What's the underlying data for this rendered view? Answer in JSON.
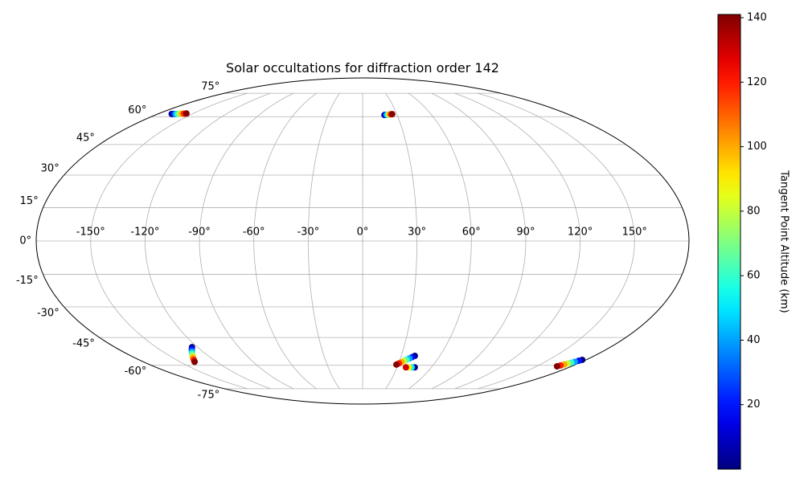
{
  "chart_data": {
    "type": "scatter",
    "projection": "mollweide",
    "title": "Solar occultations for diffraction order 142",
    "x": [
      -168,
      -166.3,
      -164.6,
      -162.9,
      -161.1,
      -159.4,
      -157.7,
      -156,
      19,
      20,
      21,
      22,
      23,
      24,
      25,
      26,
      -124,
      -126,
      -128,
      -130,
      -132,
      -134,
      -136,
      -138,
      40.6,
      38.9,
      37.2,
      35.5,
      33.7,
      32,
      30.3,
      28.6,
      45.5,
      42.9,
      40.4,
      37.8,
      177,
      175.7,
      174.3,
      173,
      171.7,
      170.3,
      169,
      167.7
    ],
    "y": [
      61.6,
      61.6,
      61.6,
      61.6,
      61.7,
      61.7,
      61.8,
      61.9,
      61,
      61.1,
      61.1,
      61.2,
      61.3,
      61.4,
      61.4,
      61.5,
      -50,
      -51.1,
      -52.3,
      -53.4,
      -54.6,
      -55.7,
      -56.9,
      -58,
      -54.7,
      -55.4,
      -56.1,
      -56.8,
      -57.5,
      -58.2,
      -58.9,
      -59.6,
      -61.2,
      -61.2,
      -61.2,
      -61.2,
      -56.9,
      -57.4,
      -58,
      -58.5,
      -59,
      -59.5,
      -60.1,
      -60.6
    ],
    "values": [
      1,
      20,
      40,
      60,
      80,
      100,
      120,
      140,
      1,
      20,
      40,
      60,
      80,
      100,
      120,
      140,
      1,
      20,
      40,
      60,
      80,
      100,
      120,
      140,
      1,
      20,
      40,
      60,
      80,
      100,
      120,
      140,
      1,
      50,
      90,
      130,
      1,
      20,
      40,
      60,
      80,
      100,
      120,
      140
    ],
    "colormap": "jet",
    "clim": [
      0,
      141
    ],
    "colorbar_label": "Tangent Point Altitude (km)",
    "colorbar_ticks": [
      20,
      40,
      60,
      80,
      100,
      120,
      140
    ],
    "grid": true,
    "xticks": [
      {
        "value": -150,
        "label": "-150°"
      },
      {
        "value": -120,
        "label": "-120°"
      },
      {
        "value": -90,
        "label": "-90°"
      },
      {
        "value": -60,
        "label": "-60°"
      },
      {
        "value": -30,
        "label": "-30°"
      },
      {
        "value": 0,
        "label": "0°"
      },
      {
        "value": 30,
        "label": "30°"
      },
      {
        "value": 60,
        "label": "60°"
      },
      {
        "value": 90,
        "label": "90°"
      },
      {
        "value": 120,
        "label": "120°"
      },
      {
        "value": 150,
        "label": "150°"
      }
    ],
    "yticks": [
      {
        "value": -75,
        "label": "-75°"
      },
      {
        "value": -60,
        "label": "-60°"
      },
      {
        "value": -45,
        "label": "-45°"
      },
      {
        "value": -30,
        "label": "-30°"
      },
      {
        "value": -15,
        "label": "-15°"
      },
      {
        "value": 0,
        "label": "0°"
      },
      {
        "value": 15,
        "label": "15°"
      },
      {
        "value": 30,
        "label": "30°"
      },
      {
        "value": 45,
        "label": "45°"
      },
      {
        "value": 60,
        "label": "60°"
      },
      {
        "value": 75,
        "label": "75°"
      }
    ]
  }
}
